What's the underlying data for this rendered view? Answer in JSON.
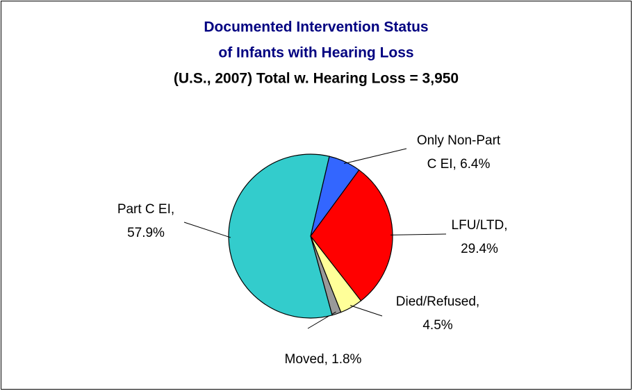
{
  "chart_data": {
    "type": "pie",
    "title": [
      "Documented Intervention Status",
      "of Infants with Hearing Loss"
    ],
    "subtitle": "(U.S., 2007) Total w. Hearing Loss = 3,950",
    "values": [
      6.4,
      29.4,
      4.5,
      1.8,
      57.9
    ],
    "value_labels": [
      [
        "Only Non-Part",
        "C EI, 6.4%"
      ],
      [
        "LFU/LTD,",
        "29.4%"
      ],
      [
        "Died/Refused,",
        "4.5%"
      ],
      [
        "Moved, 1.8%"
      ],
      [
        "Part C EI,",
        "57.9%"
      ]
    ],
    "colors": [
      "#3366ff",
      "#ff0000",
      "#ffff99",
      "#999999",
      "#33cccc"
    ]
  }
}
